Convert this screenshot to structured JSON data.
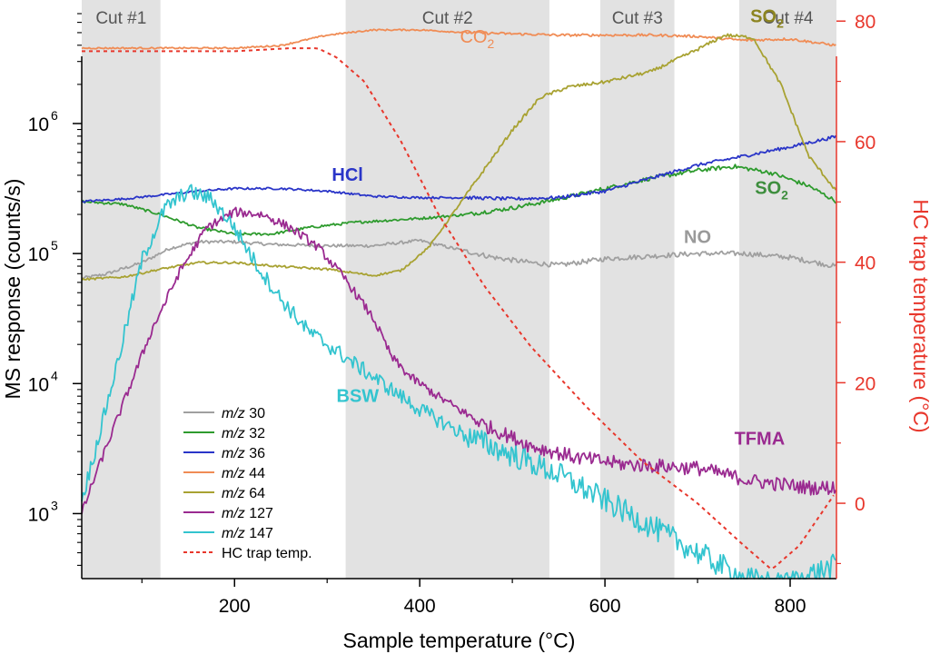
{
  "chart_data": {
    "type": "line",
    "title": "",
    "xlabel": "Sample temperature (°C)",
    "ylabel": "MS response (counts/s)",
    "y2label": "HC trap temperature (°C)",
    "xlim": [
      35,
      850
    ],
    "ylim_log10": [
      2.5,
      6.95
    ],
    "y2lim": [
      -12.5,
      83.5
    ],
    "xticks": [
      200,
      400,
      600,
      800
    ],
    "yticks": [
      {
        "exp": 3,
        "label": "10",
        "sup": "3"
      },
      {
        "exp": 4,
        "label": "10",
        "sup": "4"
      },
      {
        "exp": 5,
        "label": "10",
        "sup": "5"
      },
      {
        "exp": 6,
        "label": "10",
        "sup": "6"
      }
    ],
    "y2ticks": [
      0,
      20,
      40,
      60,
      80
    ],
    "colors": {
      "axis": "#000000",
      "axis_right": "#e8372c",
      "shade": "#e2e2e2"
    },
    "cuts": [
      {
        "label": "Cut #1",
        "x0": 35,
        "x1": 120
      },
      {
        "label": "Cut #2",
        "x0": 320,
        "x1": 540
      },
      {
        "label": "Cut #3",
        "x0": 595,
        "x1": 675
      },
      {
        "label": "Cut #4",
        "x0": 745,
        "x1": 850
      }
    ],
    "series": [
      {
        "name": "m/z 30",
        "color": "#a0a0a0",
        "noise": 0.012,
        "axis": "left",
        "x": [
          35,
          60,
          100,
          130,
          160,
          200,
          240,
          300,
          350,
          400,
          430,
          480,
          520,
          550,
          600,
          650,
          700,
          750,
          800,
          850
        ],
        "log10y": [
          4.81,
          4.84,
          4.93,
          5.04,
          5.09,
          5.09,
          5.07,
          5.06,
          5.06,
          5.1,
          5.05,
          4.97,
          4.93,
          4.91,
          4.96,
          4.98,
          5.0,
          5.0,
          4.97,
          4.9
        ]
      },
      {
        "name": "m/z 32",
        "color": "#2e9b2e",
        "noise": 0.01,
        "axis": "left",
        "x": [
          35,
          80,
          120,
          160,
          200,
          240,
          280,
          330,
          400,
          450,
          500,
          550,
          600,
          650,
          700,
          740,
          780,
          820,
          850
        ],
        "log10y": [
          5.4,
          5.38,
          5.3,
          5.2,
          5.15,
          5.15,
          5.2,
          5.24,
          5.27,
          5.3,
          5.35,
          5.42,
          5.5,
          5.58,
          5.64,
          5.67,
          5.62,
          5.52,
          5.4
        ]
      },
      {
        "name": "m/z 36",
        "color": "#2a35c8",
        "noise": 0.008,
        "axis": "left",
        "x": [
          35,
          80,
          120,
          160,
          200,
          250,
          300,
          350,
          400,
          450,
          500,
          550,
          600,
          650,
          700,
          750,
          800,
          850
        ],
        "log10y": [
          5.4,
          5.42,
          5.45,
          5.48,
          5.5,
          5.5,
          5.48,
          5.44,
          5.43,
          5.43,
          5.42,
          5.43,
          5.48,
          5.58,
          5.68,
          5.75,
          5.82,
          5.9
        ]
      },
      {
        "name": "m/z 44",
        "color": "#f08c55",
        "noise": 0.006,
        "axis": "left",
        "x": [
          35,
          100,
          150,
          200,
          250,
          300,
          350,
          400,
          450,
          500,
          550,
          600,
          650,
          700,
          750,
          800,
          850
        ],
        "log10y": [
          6.58,
          6.58,
          6.58,
          6.58,
          6.6,
          6.68,
          6.72,
          6.72,
          6.7,
          6.69,
          6.68,
          6.68,
          6.68,
          6.67,
          6.64,
          6.65,
          6.6
        ]
      },
      {
        "name": "m/z 64",
        "color": "#a8a232",
        "noise": 0.008,
        "axis": "left",
        "x": [
          35,
          80,
          120,
          160,
          200,
          250,
          300,
          350,
          380,
          410,
          450,
          500,
          530,
          560,
          600,
          650,
          700,
          730,
          760,
          790,
          820,
          850
        ],
        "log10y": [
          4.8,
          4.82,
          4.88,
          4.93,
          4.93,
          4.9,
          4.88,
          4.83,
          4.87,
          5.05,
          5.45,
          5.95,
          6.2,
          6.28,
          6.32,
          6.4,
          6.57,
          6.68,
          6.66,
          6.3,
          5.75,
          5.48
        ]
      },
      {
        "name": "m/z 127",
        "color": "#9a2a90",
        "noise": 0.035,
        "axis": "left",
        "x": [
          35,
          50,
          80,
          110,
          140,
          170,
          200,
          230,
          260,
          290,
          320,
          350,
          370,
          390,
          420,
          470,
          520,
          570,
          620,
          700,
          760,
          820,
          850
        ],
        "log10y": [
          3.0,
          3.3,
          3.85,
          4.4,
          4.85,
          5.2,
          5.32,
          5.3,
          5.2,
          5.05,
          4.8,
          4.5,
          4.2,
          4.05,
          3.9,
          3.68,
          3.52,
          3.43,
          3.38,
          3.35,
          3.25,
          3.2,
          3.2
        ]
      },
      {
        "name": "m/z 147",
        "color": "#33c4cf",
        "noise": 0.06,
        "axis": "left",
        "x": [
          35,
          50,
          75,
          100,
          125,
          150,
          175,
          200,
          225,
          250,
          280,
          310,
          340,
          370,
          400,
          450,
          500,
          550,
          600,
          650,
          700,
          750,
          790,
          830,
          850
        ],
        "log10y": [
          3.1,
          3.5,
          4.2,
          4.95,
          5.35,
          5.48,
          5.42,
          5.2,
          4.9,
          4.65,
          4.4,
          4.25,
          4.1,
          3.95,
          3.8,
          3.6,
          3.45,
          3.3,
          3.1,
          2.9,
          2.7,
          2.5,
          2.45,
          2.55,
          2.6
        ]
      },
      {
        "name": "HC trap temp.",
        "color": "#e8372c",
        "noise": 0,
        "axis": "right",
        "dashed": true,
        "x": [
          35,
          100,
          200,
          260,
          290,
          310,
          340,
          380,
          420,
          470,
          520,
          580,
          640,
          700,
          750,
          780,
          810,
          850
        ],
        "y": [
          75,
          75,
          75,
          75.5,
          75.5,
          74,
          70,
          60,
          48,
          36,
          26,
          16,
          7,
          0,
          -7,
          -11,
          -7,
          2
        ]
      }
    ],
    "legend": {
      "placement": "lower-left",
      "entries": [
        {
          "prefix": "m/z",
          "value": "30",
          "color": "#a0a0a0",
          "dashed": false
        },
        {
          "prefix": "m/z",
          "value": "32",
          "color": "#2e9b2e",
          "dashed": false
        },
        {
          "prefix": "m/z",
          "value": "36",
          "color": "#2a35c8",
          "dashed": false
        },
        {
          "prefix": "m/z",
          "value": "44",
          "color": "#f08c55",
          "dashed": false
        },
        {
          "prefix": "m/z",
          "value": "64",
          "color": "#a8a232",
          "dashed": false
        },
        {
          "prefix": "m/z",
          "value": "127",
          "color": "#9a2a90",
          "dashed": false
        },
        {
          "prefix": "m/z",
          "value": "147",
          "color": "#33c4cf",
          "dashed": false
        },
        {
          "prefix": "",
          "value": "HC trap temp.",
          "color": "#e8372c",
          "dashed": true
        }
      ]
    },
    "annotations": [
      {
        "text": "CO",
        "sub": "2",
        "color": "#f08c55",
        "bold": false,
        "x": 462,
        "log10y": 6.62
      },
      {
        "text": "SO",
        "sub": "2",
        "color": "#8c8420",
        "bold": true,
        "x": 775,
        "log10y": 6.78
      },
      {
        "text": "HCl",
        "sub": "",
        "color": "#2a35c8",
        "bold": true,
        "x": 322,
        "log10y": 5.56
      },
      {
        "text": "SO",
        "sub": "2",
        "color": "#3e8e3e",
        "bold": true,
        "x": 780,
        "log10y": 5.46
      },
      {
        "text": "NO",
        "sub": "",
        "color": "#9a9a9a",
        "bold": true,
        "x": 700,
        "log10y": 5.08
      },
      {
        "text": "BSW",
        "sub": "",
        "color": "#33c4cf",
        "bold": true,
        "x": 333,
        "log10y": 3.86
      },
      {
        "text": "TFMA",
        "sub": "",
        "color": "#9a2a90",
        "bold": true,
        "x": 767,
        "log10y": 3.53
      }
    ]
  }
}
